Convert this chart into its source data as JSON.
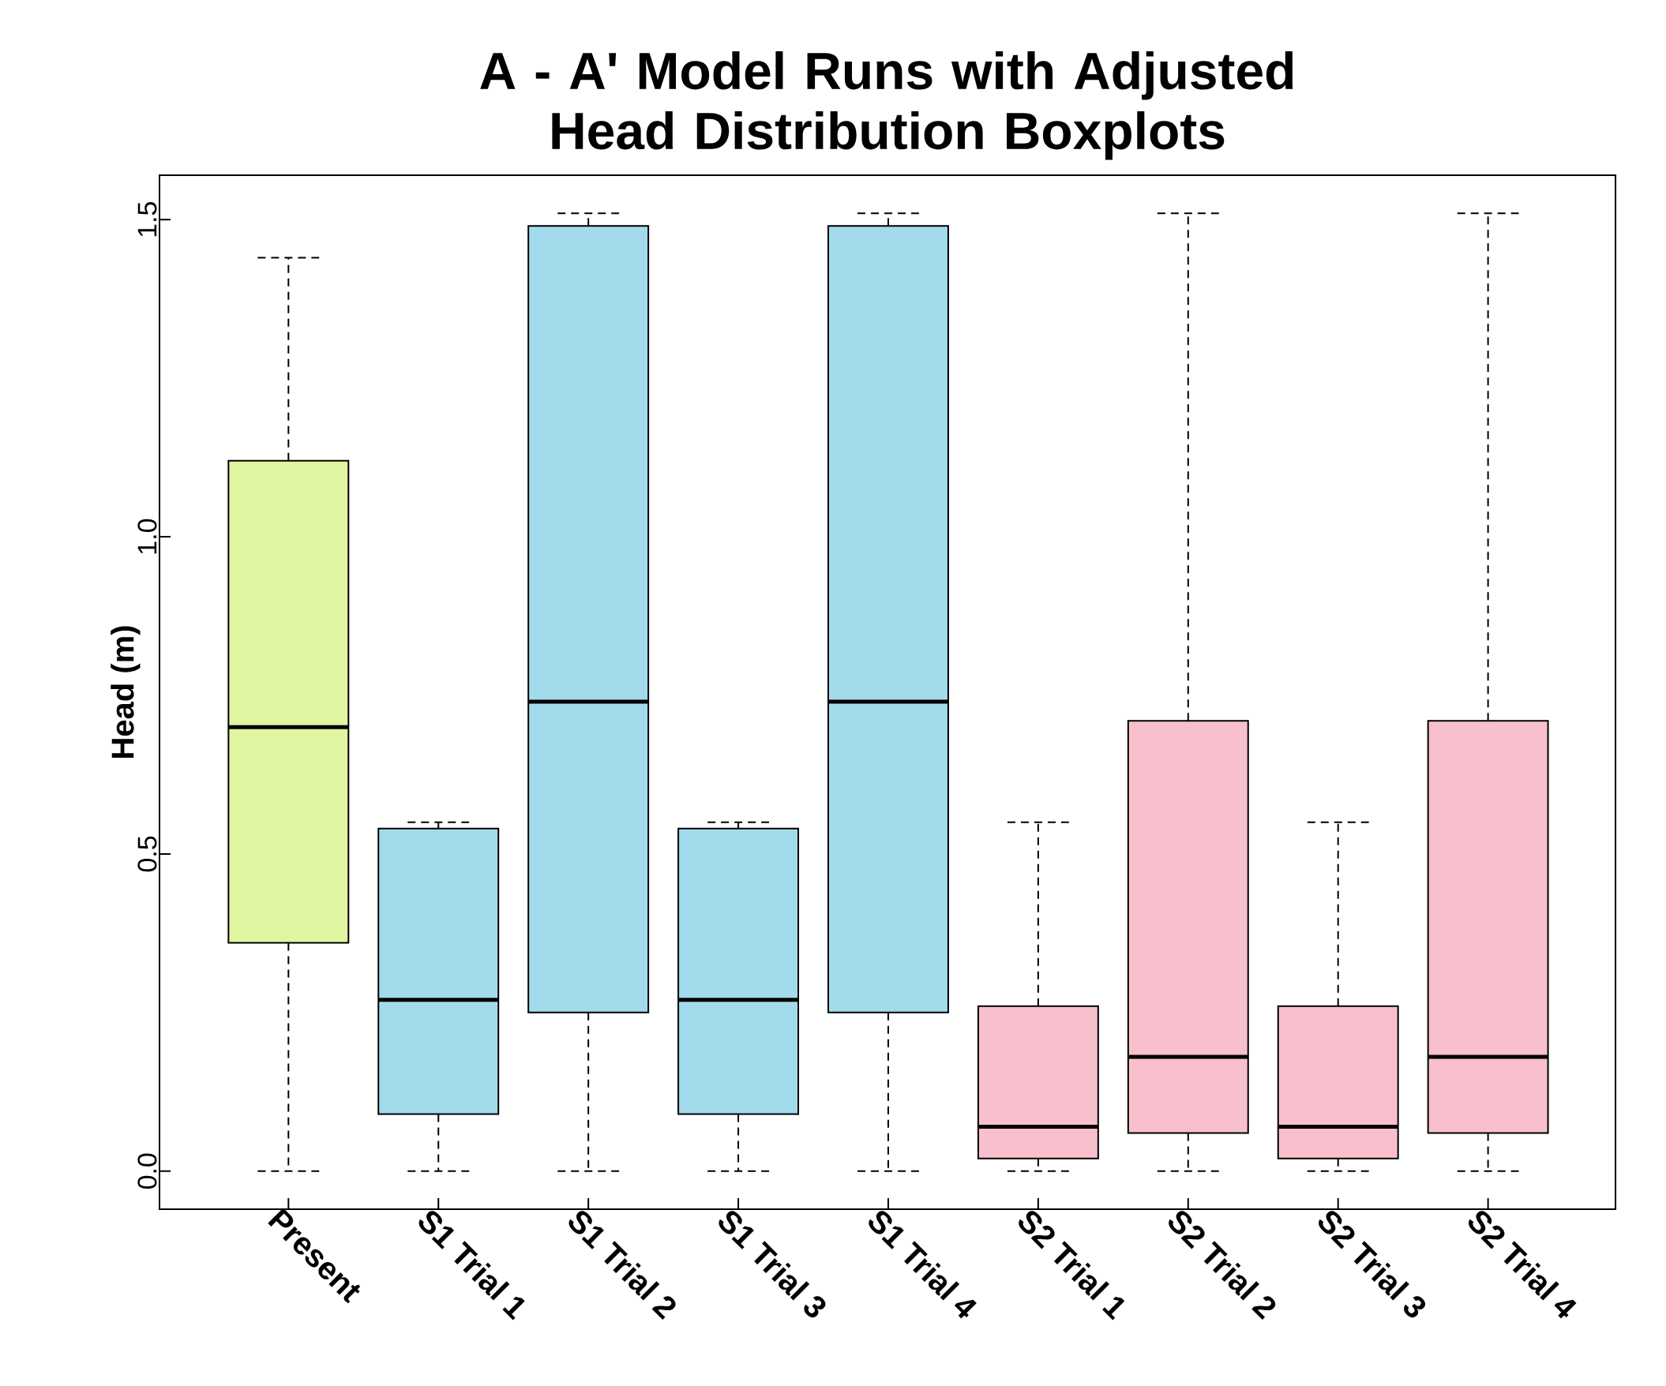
{
  "chart_data": {
    "type": "box",
    "title": "A - A' Model Runs with Adjusted Head Distribution Boxplots",
    "ylabel": "Head (m)",
    "categories": [
      "Present",
      "S1 Trial 1",
      "S1 Trial 2",
      "S1 Trial 3",
      "S1 Trial 4",
      "S2 Trial 1",
      "S2 Trial 2",
      "S2 Trial 3",
      "S2 Trial 4"
    ],
    "colors": [
      "#e0f5a0",
      "#a3dbed",
      "#a3dbed",
      "#a3dbed",
      "#a3dbed",
      "#f8c0cc",
      "#f8c0cc",
      "#f8c0cc",
      "#f8c0cc"
    ],
    "boxes": [
      {
        "low": 0,
        "q1": 0.36,
        "median": 0.7,
        "q3": 1.12,
        "high": 1.44
      },
      {
        "low": 0,
        "q1": 0.09,
        "median": 0.27,
        "q3": 0.54,
        "high": 0.55
      },
      {
        "low": 0,
        "q1": 0.25,
        "median": 0.74,
        "q3": 1.49,
        "high": 1.51
      },
      {
        "low": 0,
        "q1": 0.09,
        "median": 0.27,
        "q3": 0.54,
        "high": 0.55
      },
      {
        "low": 0,
        "q1": 0.25,
        "median": 0.74,
        "q3": 1.49,
        "high": 1.51
      },
      {
        "low": 0,
        "q1": 0.02,
        "median": 0.07,
        "q3": 0.26,
        "high": 0.55
      },
      {
        "low": 0,
        "q1": 0.06,
        "median": 0.18,
        "q3": 0.71,
        "high": 1.51
      },
      {
        "low": 0,
        "q1": 0.02,
        "median": 0.07,
        "q3": 0.26,
        "high": 0.55
      },
      {
        "low": 0,
        "q1": 0.06,
        "median": 0.18,
        "q3": 0.71,
        "high": 1.51
      }
    ],
    "ylim": [
      -0.06,
      1.57
    ],
    "yticks": [
      {
        "value": 0,
        "label": "0.0"
      },
      {
        "value": 0.5,
        "label": "0.5"
      },
      {
        "value": 1.0,
        "label": "1.0"
      },
      {
        "value": 1.5,
        "label": "1.5"
      }
    ],
    "grid": false
  }
}
